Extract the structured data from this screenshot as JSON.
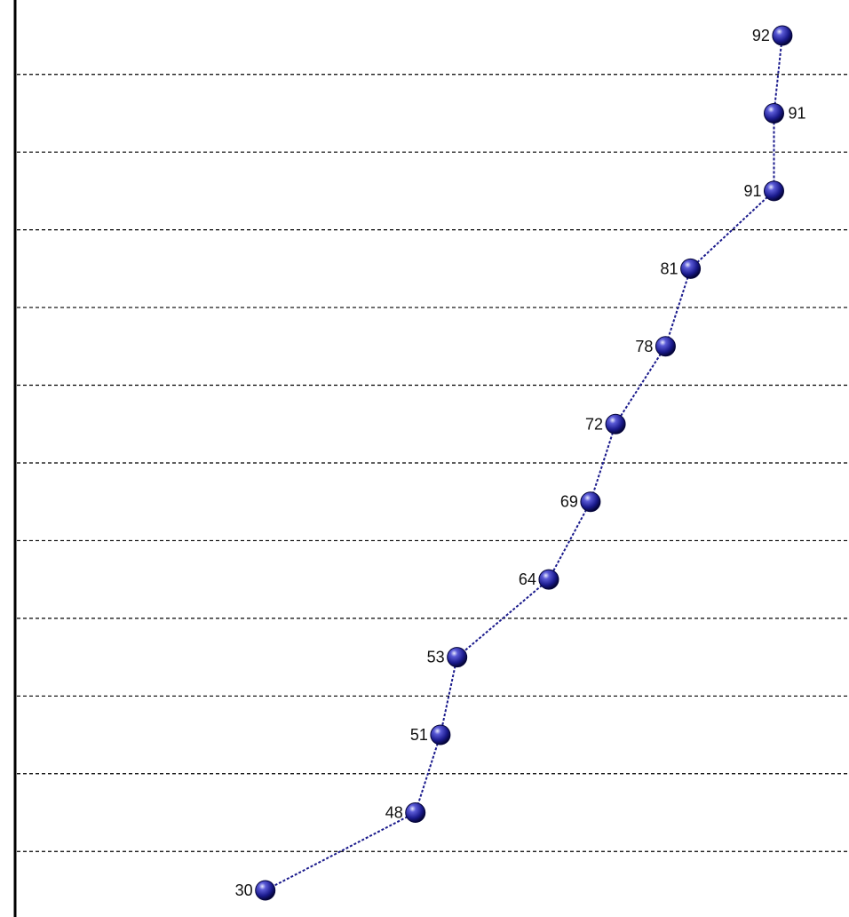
{
  "chart_data": {
    "type": "line",
    "orientation": "horizontal-categories-vertical",
    "values": [
      92,
      91,
      91,
      81,
      78,
      72,
      69,
      64,
      53,
      51,
      48,
      30
    ],
    "label_side": [
      "left",
      "right",
      "left",
      "left",
      "left",
      "left",
      "left",
      "left",
      "left",
      "left",
      "left",
      "left"
    ],
    "value_axis": "x",
    "xlim": [
      0,
      100
    ],
    "grid": true,
    "legend": "none",
    "colors": {
      "line": "#1a1a8c",
      "marker": "#1f1f9e",
      "grid": "#000000",
      "axis": "#000000"
    }
  }
}
